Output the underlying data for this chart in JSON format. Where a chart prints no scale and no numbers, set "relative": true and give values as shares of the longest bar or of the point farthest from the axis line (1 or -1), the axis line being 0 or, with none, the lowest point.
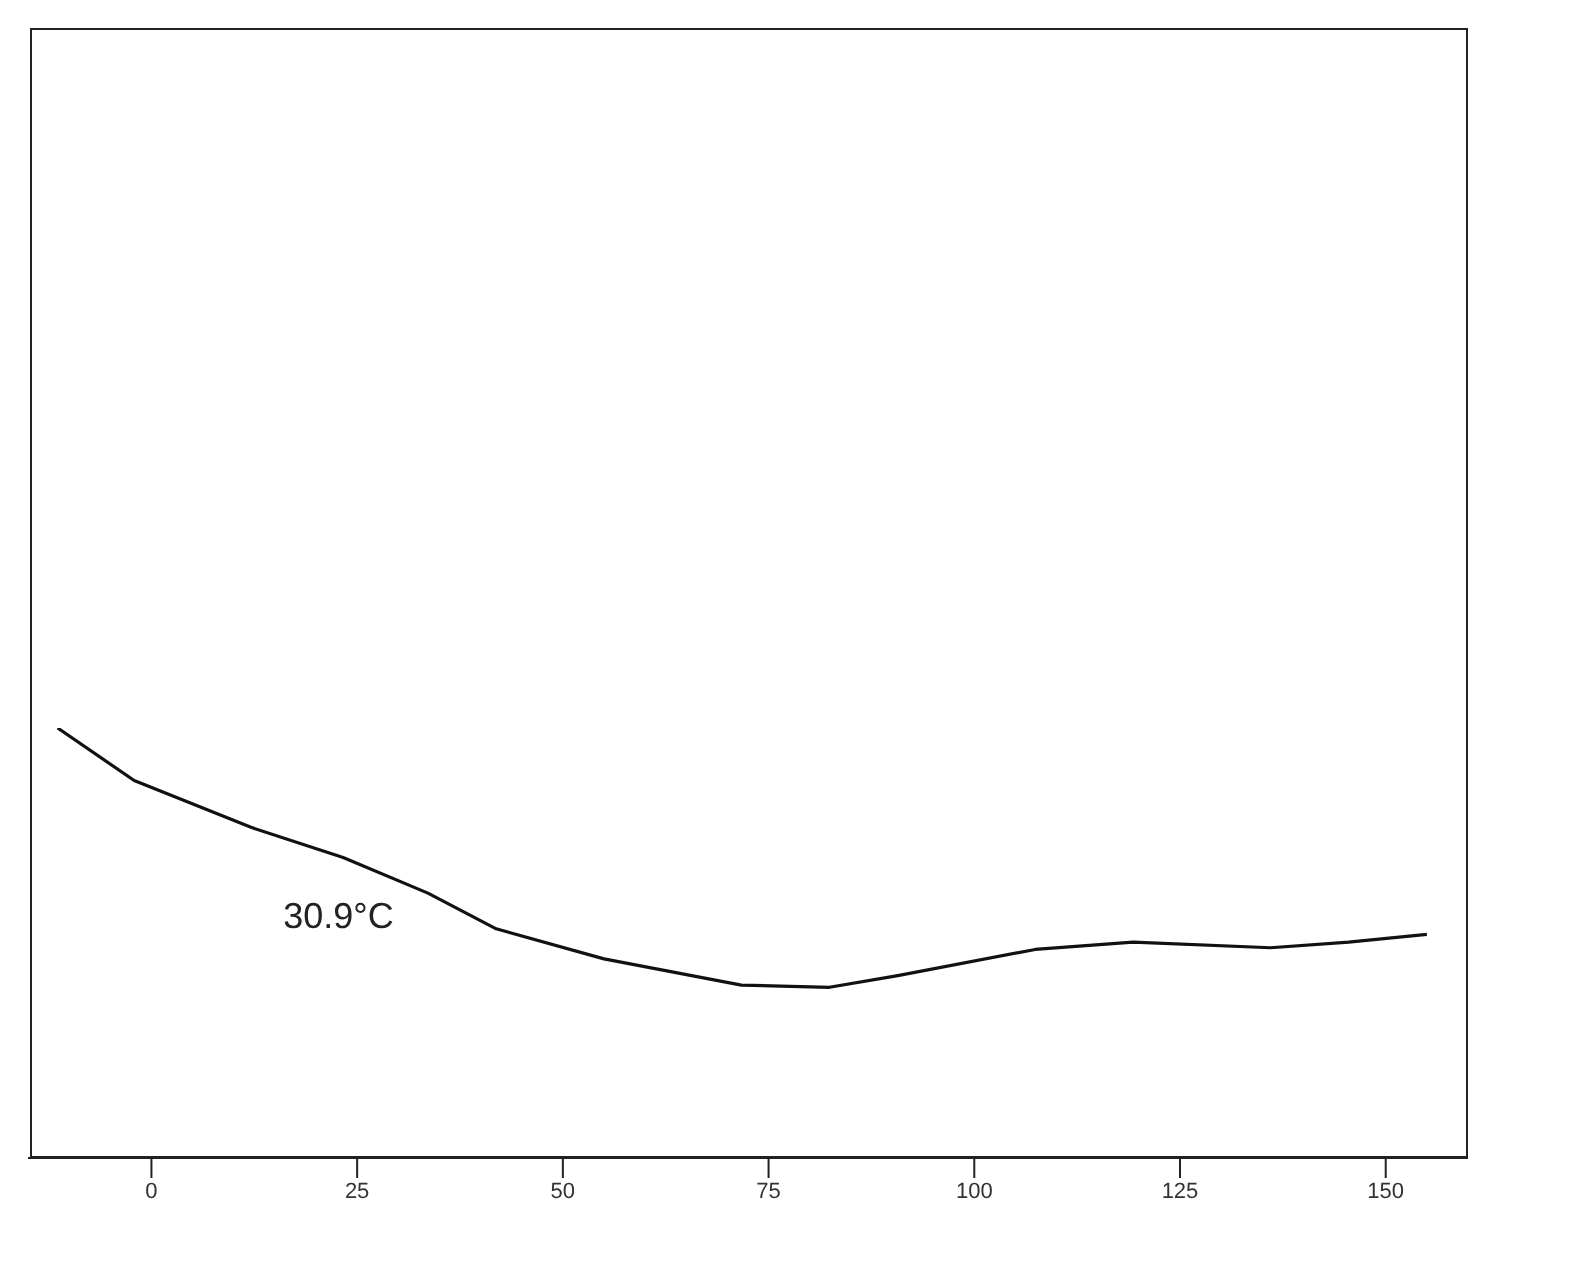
{
  "chart_data": {
    "type": "line",
    "relative": true,
    "x": [
      -11.4,
      -2.1,
      12.1,
      23.3,
      33.6,
      41.9,
      55,
      71.7,
      82.4,
      90.7,
      107.4,
      119.3,
      136,
      145.5,
      155
    ],
    "series": [
      {
        "color": "#111111",
        "values": [
          1.0,
          0.878,
          0.769,
          0.699,
          0.616,
          0.533,
          0.463,
          0.402,
          0.397,
          0.424,
          0.485,
          0.502,
          0.489,
          0.502,
          0.52
        ]
      }
    ],
    "xlim": [
      -15,
      160
    ],
    "xticks": [
      0,
      25,
      50,
      75,
      100,
      125,
      150
    ],
    "annotations": [
      {
        "text": "30.9°C",
        "x": 30.9,
        "y": 0.63
      }
    ],
    "grid": false,
    "marker": "none",
    "line_style": "solid"
  }
}
